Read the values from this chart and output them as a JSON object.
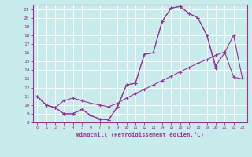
{
  "xlabel": "Windchill (Refroidissement éolien,°C)",
  "bg_color": "#c8ecec",
  "grid_color": "#ffffff",
  "line_color": "#993399",
  "xlim_min": -0.5,
  "xlim_max": 23.5,
  "ylim_min": 8,
  "ylim_max": 21.5,
  "xticks": [
    0,
    1,
    2,
    3,
    4,
    5,
    6,
    7,
    8,
    9,
    10,
    11,
    12,
    13,
    14,
    15,
    16,
    17,
    18,
    19,
    20,
    21,
    22,
    23
  ],
  "yticks": [
    8,
    9,
    10,
    11,
    12,
    13,
    14,
    15,
    16,
    17,
    18,
    19,
    20,
    21
  ],
  "curve1_x": [
    0,
    1,
    2,
    3,
    4,
    5,
    6,
    7,
    8,
    9,
    10,
    11,
    12,
    13,
    14,
    15,
    16,
    17,
    18,
    19,
    20
  ],
  "curve1_y": [
    11.0,
    10.0,
    9.7,
    9.0,
    9.0,
    9.5,
    8.8,
    8.4,
    8.3,
    9.8,
    12.3,
    12.5,
    15.8,
    16.0,
    19.6,
    21.1,
    21.3,
    20.5,
    20.0,
    18.0,
    14.2
  ],
  "curve2_x": [
    0,
    1,
    2,
    3,
    4,
    5,
    6,
    7,
    8,
    9,
    10,
    11,
    12,
    13,
    14,
    15,
    16,
    17,
    18,
    19,
    20,
    21,
    22,
    23
  ],
  "curve2_y": [
    11.0,
    10.0,
    9.7,
    9.0,
    9.0,
    9.5,
    8.8,
    8.4,
    8.3,
    9.8,
    12.3,
    12.5,
    15.8,
    16.0,
    19.6,
    21.1,
    21.3,
    20.5,
    20.0,
    18.0,
    14.5,
    16.0,
    18.0,
    13.0
  ],
  "curve3_x": [
    0,
    1,
    2,
    3,
    4,
    5,
    6,
    7,
    8,
    9,
    10,
    11,
    12,
    13,
    14,
    15,
    16,
    17,
    18,
    19,
    20,
    21,
    22,
    23
  ],
  "curve3_y": [
    11.0,
    10.0,
    9.7,
    10.5,
    10.8,
    10.5,
    10.2,
    10.0,
    9.8,
    10.2,
    10.8,
    11.3,
    11.8,
    12.3,
    12.8,
    13.3,
    13.8,
    14.3,
    14.8,
    15.2,
    15.7,
    16.1,
    13.2,
    13.0
  ]
}
